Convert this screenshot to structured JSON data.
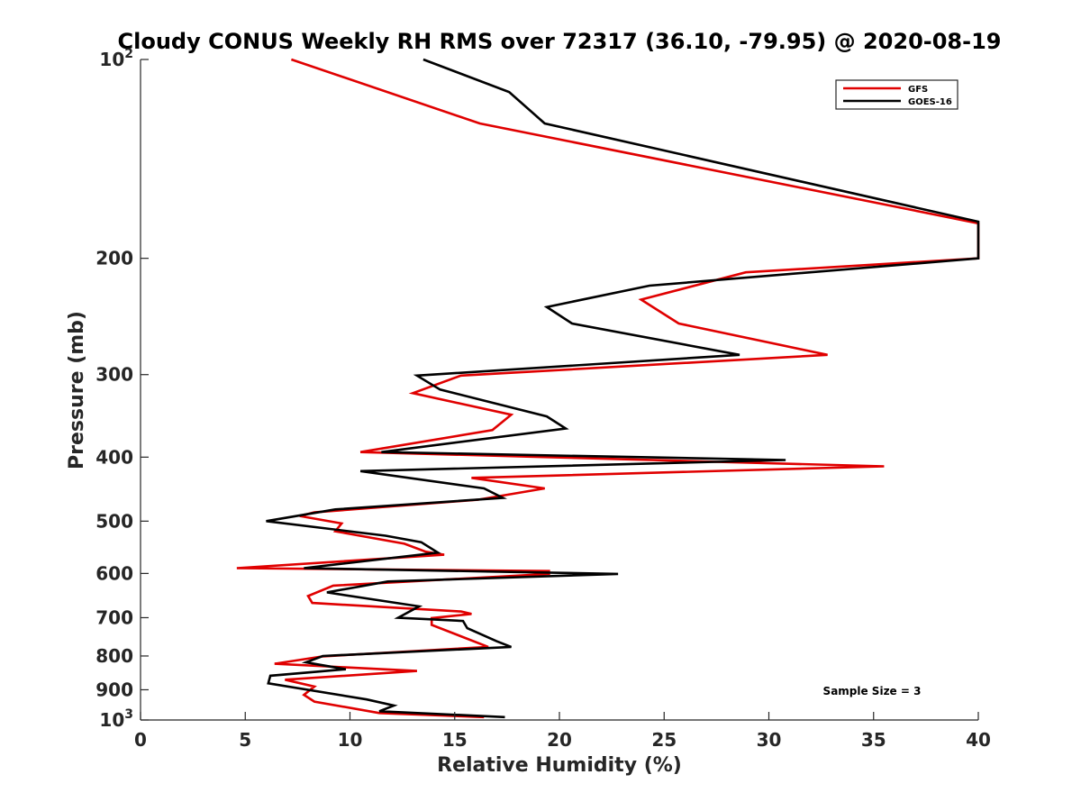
{
  "chart_data": {
    "type": "line",
    "title": "Cloudy CONUS Weekly RH RMS over 72317 (36.10, -79.95) @ 2020-08-19",
    "xlabel": "Relative Humidity (%)",
    "ylabel": "Pressure (mb)",
    "xlim": [
      0,
      40
    ],
    "ylim": [
      100,
      1000
    ],
    "y_scale": "log",
    "y_reversed": true,
    "grid": false,
    "legend_position": "top-right",
    "x_ticks": [
      "0",
      "5",
      "10",
      "15",
      "20",
      "25",
      "30",
      "35",
      "40"
    ],
    "y_ticks": [
      {
        "value": 100,
        "base": "10",
        "exp": "2"
      },
      {
        "value": 200,
        "label": "200"
      },
      {
        "value": 300,
        "label": "300"
      },
      {
        "value": 400,
        "label": "400"
      },
      {
        "value": 500,
        "label": "500"
      },
      {
        "value": 600,
        "label": "600"
      },
      {
        "value": 700,
        "label": "700"
      },
      {
        "value": 800,
        "label": "800"
      },
      {
        "value": 900,
        "label": "900"
      },
      {
        "value": 1000,
        "base": "10",
        "exp": "3"
      }
    ],
    "annotation": "Sample Size = 3",
    "series": [
      {
        "name": "GFS",
        "color": "#e00000",
        "points": [
          [
            7.2,
            100
          ],
          [
            16.2,
            125
          ],
          [
            40.0,
            177
          ],
          [
            40.0,
            197
          ],
          [
            40.0,
            200
          ],
          [
            28.9,
            210
          ],
          [
            23.9,
            231
          ],
          [
            25.7,
            251
          ],
          [
            32.8,
            280
          ],
          [
            15.3,
            301
          ],
          [
            13.0,
            320
          ],
          [
            17.7,
            345
          ],
          [
            16.8,
            364
          ],
          [
            10.5,
            393
          ],
          [
            35.5,
            413
          ],
          [
            15.8,
            430
          ],
          [
            19.3,
            446
          ],
          [
            16.1,
            464
          ],
          [
            8.3,
            485
          ],
          [
            7.6,
            491
          ],
          [
            9.6,
            504
          ],
          [
            9.3,
            518
          ],
          [
            12.6,
            541
          ],
          [
            13.6,
            556
          ],
          [
            14.5,
            562
          ],
          [
            4.6,
            589
          ],
          [
            19.5,
            595
          ],
          [
            19.5,
            601
          ],
          [
            9.2,
            626
          ],
          [
            8.0,
            649
          ],
          [
            8.2,
            665
          ],
          [
            15.3,
            685
          ],
          [
            15.8,
            691
          ],
          [
            13.9,
            701
          ],
          [
            13.9,
            718
          ],
          [
            16.6,
            775
          ],
          [
            8.7,
            801
          ],
          [
            6.4,
            822
          ],
          [
            13.2,
            843
          ],
          [
            6.9,
            869
          ],
          [
            8.3,
            890
          ],
          [
            7.8,
            916
          ],
          [
            8.3,
            938
          ],
          [
            11.4,
            976
          ],
          [
            16.4,
            990
          ]
        ]
      },
      {
        "name": "GOES-16",
        "color": "#000000",
        "points": [
          [
            13.5,
            100
          ],
          [
            17.6,
            112
          ],
          [
            19.3,
            125
          ],
          [
            40.0,
            176
          ],
          [
            40.0,
            200
          ],
          [
            24.3,
            220
          ],
          [
            19.4,
            237
          ],
          [
            20.6,
            251
          ],
          [
            28.6,
            280
          ],
          [
            13.2,
            301
          ],
          [
            14.3,
            316
          ],
          [
            19.4,
            347
          ],
          [
            20.3,
            362
          ],
          [
            11.5,
            393
          ],
          [
            30.8,
            404
          ],
          [
            10.5,
            420
          ],
          [
            16.4,
            446
          ],
          [
            17.3,
            461
          ],
          [
            9.3,
            480
          ],
          [
            6.0,
            500
          ],
          [
            11.7,
            526
          ],
          [
            13.4,
            538
          ],
          [
            14.2,
            558
          ],
          [
            7.8,
            589
          ],
          [
            22.8,
            601
          ],
          [
            11.8,
            617
          ],
          [
            8.9,
            641
          ],
          [
            13.3,
            673
          ],
          [
            12.3,
            700
          ],
          [
            15.4,
            708
          ],
          [
            15.6,
            726
          ],
          [
            17.0,
            760
          ],
          [
            17.7,
            775
          ],
          [
            8.7,
            800
          ],
          [
            7.9,
            818
          ],
          [
            9.8,
            838
          ],
          [
            6.2,
            857
          ],
          [
            6.1,
            880
          ],
          [
            10.8,
            931
          ],
          [
            12.1,
            951
          ],
          [
            11.4,
            970
          ],
          [
            17.4,
            990
          ]
        ]
      }
    ]
  }
}
